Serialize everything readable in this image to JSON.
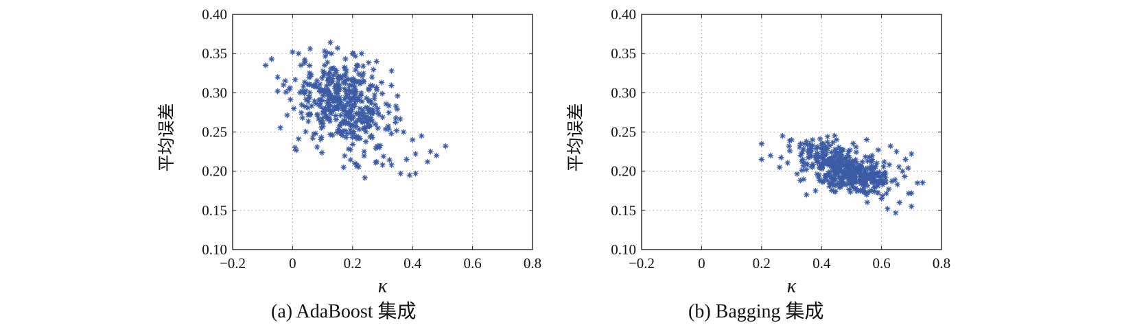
{
  "colors": {
    "marker": "#3b5ba5",
    "axis": "#111111",
    "grid": "#9a9a9a"
  },
  "chart_data": [
    {
      "type": "scatter",
      "caption": "(a) AdaBoost 集成",
      "xlabel": "κ",
      "ylabel": "平均误差",
      "xlim": [
        -0.2,
        0.8
      ],
      "ylim": [
        0.1,
        0.4
      ],
      "xticks": [
        "−0.2",
        "0",
        "0.2",
        "0.4",
        "0.6",
        "0.8"
      ],
      "yticks": [
        "0.10",
        "0.15",
        "0.20",
        "0.25",
        "0.30",
        "0.35",
        "0.40"
      ],
      "grid": true,
      "marker": "*",
      "cluster": {
        "center": [
          0.17,
          0.285
        ],
        "spread": [
          0.09,
          0.027
        ],
        "tilt": -0.12,
        "count": 420
      },
      "points": [
        [
          -0.09,
          0.335
        ],
        [
          -0.07,
          0.343
        ],
        [
          -0.05,
          0.32
        ],
        [
          -0.05,
          0.302
        ],
        [
          -0.03,
          0.31
        ],
        [
          0.0,
          0.352
        ],
        [
          0.02,
          0.35
        ],
        [
          0.04,
          0.338
        ],
        [
          0.13,
          0.35
        ],
        [
          0.15,
          0.357
        ],
        [
          0.23,
          0.35
        ],
        [
          0.28,
          0.34
        ],
        [
          0.33,
          0.328
        ],
        [
          0.35,
          0.296
        ],
        [
          0.37,
          0.25
        ],
        [
          0.4,
          0.24
        ],
        [
          0.43,
          0.245
        ],
        [
          0.41,
          0.222
        ],
        [
          0.38,
          0.215
        ],
        [
          0.36,
          0.197
        ],
        [
          0.39,
          0.195
        ],
        [
          0.41,
          0.197
        ],
        [
          0.33,
          0.208
        ],
        [
          0.3,
          0.208
        ],
        [
          0.28,
          0.212
        ],
        [
          0.17,
          0.205
        ],
        [
          0.46,
          0.225
        ],
        [
          0.48,
          0.22
        ],
        [
          0.51,
          0.232
        ],
        [
          0.45,
          0.212
        ]
      ]
    },
    {
      "type": "scatter",
      "caption": "(b) Bagging 集成",
      "xlabel": "κ",
      "ylabel": "平均误差",
      "xlim": [
        -0.2,
        0.8
      ],
      "ylim": [
        0.1,
        0.4
      ],
      "xticks": [
        "−0.2",
        "0",
        "0.2",
        "0.4",
        "0.6",
        "0.8"
      ],
      "yticks": [
        "0.10",
        "0.15",
        "0.20",
        "0.25",
        "0.30",
        "0.35",
        "0.40"
      ],
      "grid": true,
      "marker": "*",
      "cluster": {
        "center": [
          0.48,
          0.203
        ],
        "spread": [
          0.085,
          0.014
        ],
        "tilt": -0.1,
        "count": 420
      },
      "points": [
        [
          0.2,
          0.235
        ],
        [
          0.2,
          0.215
        ],
        [
          0.23,
          0.22
        ],
        [
          0.27,
          0.245
        ],
        [
          0.3,
          0.24
        ],
        [
          0.35,
          0.238
        ],
        [
          0.42,
          0.244
        ],
        [
          0.33,
          0.235
        ],
        [
          0.37,
          0.24
        ],
        [
          0.45,
          0.24
        ],
        [
          0.63,
          0.232
        ],
        [
          0.65,
          0.225
        ],
        [
          0.7,
          0.222
        ],
        [
          0.68,
          0.215
        ],
        [
          0.72,
          0.185
        ],
        [
          0.7,
          0.172
        ],
        [
          0.7,
          0.155
        ],
        [
          0.66,
          0.16
        ],
        [
          0.62,
          0.152
        ],
        [
          0.6,
          0.165
        ],
        [
          0.55,
          0.17
        ],
        [
          0.35,
          0.17
        ],
        [
          0.38,
          0.175
        ],
        [
          0.26,
          0.205
        ],
        [
          0.67,
          0.2
        ]
      ]
    }
  ]
}
